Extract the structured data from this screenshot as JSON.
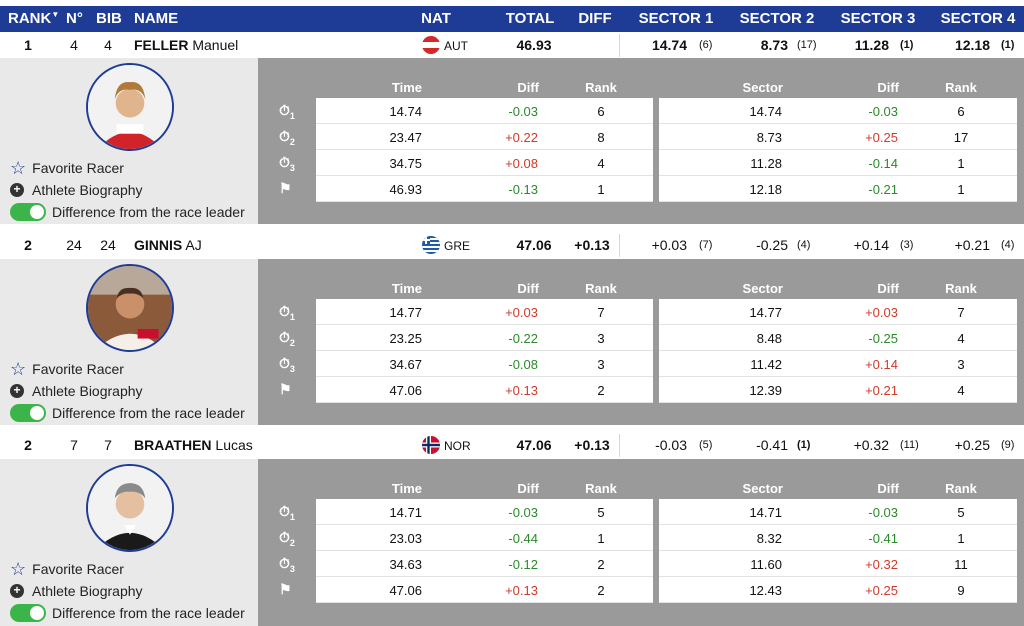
{
  "header": {
    "rank": "RANK",
    "no": "N°",
    "bib": "BIB",
    "name": "NAME",
    "nat": "NAT",
    "total": "TOTAL",
    "diff": "DIFF",
    "sector1": "SECTOR 1",
    "sector2": "SECTOR 2",
    "sector3": "SECTOR 3",
    "sector4": "SECTOR 4"
  },
  "detail_headers": {
    "time": "Time",
    "diff": "Diff",
    "rank": "Rank",
    "sector": "Sector",
    "diff2": "Diff",
    "rank2": "Rank"
  },
  "links": {
    "favorite": "Favorite Racer",
    "biography": "Athlete Biography",
    "difference": "Difference from the race leader"
  },
  "colors": {
    "header_bg": "#1e3c96",
    "negative": "#2a8a2a",
    "positive": "#d23a2a",
    "toggle_on": "#3bb54a"
  },
  "racers": [
    {
      "rank": "1",
      "no": "4",
      "bib": "4",
      "last": "FELLER",
      "first": "Manuel",
      "nat": "AUT",
      "total": "46.93",
      "diff": "",
      "s1": "14.74",
      "s1r": "(6)",
      "s2": "8.73",
      "s2r": "(17)",
      "s3": "11.28",
      "s3r": "(1)",
      "s4": "12.18",
      "s4r": "(1)",
      "splits": [
        {
          "time": "14.74",
          "diff": "-0.03",
          "rank": "6",
          "sector": "14.74",
          "sdiff": "-0.03",
          "srank": "6"
        },
        {
          "time": "23.47",
          "diff": "+0.22",
          "rank": "8",
          "sector": "8.73",
          "sdiff": "+0.25",
          "srank": "17"
        },
        {
          "time": "34.75",
          "diff": "+0.08",
          "rank": "4",
          "sector": "11.28",
          "sdiff": "-0.14",
          "srank": "1"
        },
        {
          "time": "46.93",
          "diff": "-0.13",
          "rank": "1",
          "sector": "12.18",
          "sdiff": "-0.21",
          "srank": "1"
        }
      ]
    },
    {
      "rank": "2",
      "no": "24",
      "bib": "24",
      "last": "GINNIS",
      "first": "AJ",
      "nat": "GRE",
      "total": "47.06",
      "diff": "+0.13",
      "s1": "+0.03",
      "s1r": "(7)",
      "s2": "-0.25",
      "s2r": "(4)",
      "s3": "+0.14",
      "s3r": "(3)",
      "s4": "+0.21",
      "s4r": "(4)",
      "splits": [
        {
          "time": "14.77",
          "diff": "+0.03",
          "rank": "7",
          "sector": "14.77",
          "sdiff": "+0.03",
          "srank": "7"
        },
        {
          "time": "23.25",
          "diff": "-0.22",
          "rank": "3",
          "sector": "8.48",
          "sdiff": "-0.25",
          "srank": "4"
        },
        {
          "time": "34.67",
          "diff": "-0.08",
          "rank": "3",
          "sector": "11.42",
          "sdiff": "+0.14",
          "srank": "3"
        },
        {
          "time": "47.06",
          "diff": "+0.13",
          "rank": "2",
          "sector": "12.39",
          "sdiff": "+0.21",
          "srank": "4"
        }
      ]
    },
    {
      "rank": "2",
      "no": "7",
      "bib": "7",
      "last": "BRAATHEN",
      "first": "Lucas",
      "nat": "NOR",
      "total": "47.06",
      "diff": "+0.13",
      "s1": "-0.03",
      "s1r": "(5)",
      "s2": "-0.41",
      "s2r": "(1)",
      "s3": "+0.32",
      "s3r": "(11)",
      "s4": "+0.25",
      "s4r": "(9)",
      "splits": [
        {
          "time": "14.71",
          "diff": "-0.03",
          "rank": "5",
          "sector": "14.71",
          "sdiff": "-0.03",
          "srank": "5"
        },
        {
          "time": "23.03",
          "diff": "-0.44",
          "rank": "1",
          "sector": "8.32",
          "sdiff": "-0.41",
          "srank": "1"
        },
        {
          "time": "34.63",
          "diff": "-0.12",
          "rank": "2",
          "sector": "11.60",
          "sdiff": "+0.32",
          "srank": "11"
        },
        {
          "time": "47.06",
          "diff": "+0.13",
          "rank": "2",
          "sector": "12.43",
          "sdiff": "+0.25",
          "srank": "9"
        }
      ]
    }
  ]
}
